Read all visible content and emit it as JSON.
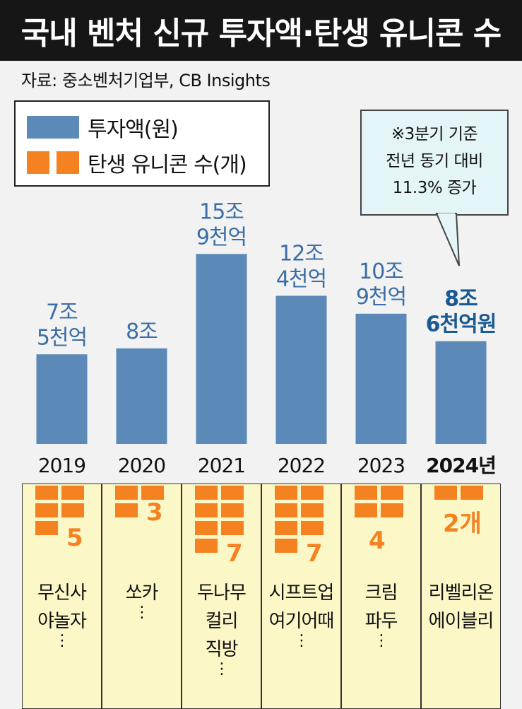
{
  "title": "국내 벤처 신규 투자액·탄생 유니콘 수",
  "source": "자료: 중소벤처기업부, CB Insights",
  "legend": {
    "investment": "투자액(원)",
    "unicorns": "탄생 유니콘 수(개)"
  },
  "callout": {
    "lines": [
      "※3분기 기준",
      "전년 동기 대비",
      "11.3% 증가"
    ]
  },
  "colors": {
    "bar": "#5b8ab9",
    "unicorn": "#f58220",
    "highlight_label": "#1a5a93",
    "label": "#3a6ea5"
  },
  "chart_data": {
    "type": "bar",
    "categories": [
      "2019",
      "2020",
      "2021",
      "2022",
      "2023",
      "2024년"
    ],
    "series": [
      {
        "name": "투자액(원)",
        "values": [
          7.5,
          8.0,
          15.9,
          12.4,
          10.9,
          8.6
        ],
        "labels": [
          [
            "7조",
            "5천억"
          ],
          [
            "8조"
          ],
          [
            "15조",
            "9천억"
          ],
          [
            "12조",
            "4천억"
          ],
          [
            "10조",
            "9천억"
          ],
          [
            "8조",
            "6천억원"
          ]
        ]
      },
      {
        "name": "탄생 유니콘 수(개)",
        "values": [
          5,
          3,
          7,
          7,
          4,
          2
        ],
        "labels": [
          "5",
          "3",
          "7",
          "7",
          "4",
          "2개"
        ]
      }
    ],
    "highlight_index": 5
  },
  "companies": [
    [
      "무신사",
      "야놀자"
    ],
    [
      "쏘카"
    ],
    [
      "두나무",
      "컬리",
      "직방"
    ],
    [
      "시프트업",
      "여기어때"
    ],
    [
      "크림",
      "파두"
    ],
    [
      "리벨리온",
      "에이블리"
    ]
  ],
  "more_marker": "⋮",
  "has_more": [
    true,
    true,
    true,
    true,
    true,
    false
  ]
}
